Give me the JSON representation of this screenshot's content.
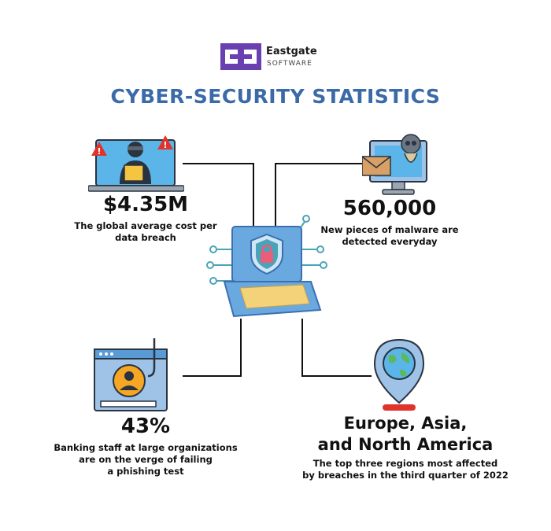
{
  "logo": {
    "name": "Eastgate",
    "subtitle": "SOFTWARE",
    "color": "#6a3fb0"
  },
  "title": "CYBER-SECURITY STATISTICS",
  "stats": [
    {
      "value": "$4.35M",
      "description_lines": [
        "The global average cost per",
        "data breach"
      ]
    },
    {
      "value": "560,000",
      "description_lines": [
        "New pieces of malware are",
        "detected everyday"
      ]
    },
    {
      "value": "43%",
      "description_lines": [
        "Banking staff at large organizations",
        "are on the verge of failing",
        "a phishing test"
      ]
    },
    {
      "value_lines": [
        "Europe, Asia,",
        "and North America"
      ],
      "description_lines": [
        "The top three regions most affected",
        "by breaches in the third quarter of 2022"
      ]
    }
  ],
  "colors": {
    "title": "#3a6aa8",
    "accent_blue": "#5b9bd5",
    "accent_orange": "#f5a623",
    "dark": "#2a3340",
    "red": "#e0332b"
  },
  "icons": [
    "hacker-laptop-icon",
    "malware-monitor-icon",
    "secure-laptop-icon",
    "phishing-browser-icon",
    "globe-pin-icon"
  ]
}
